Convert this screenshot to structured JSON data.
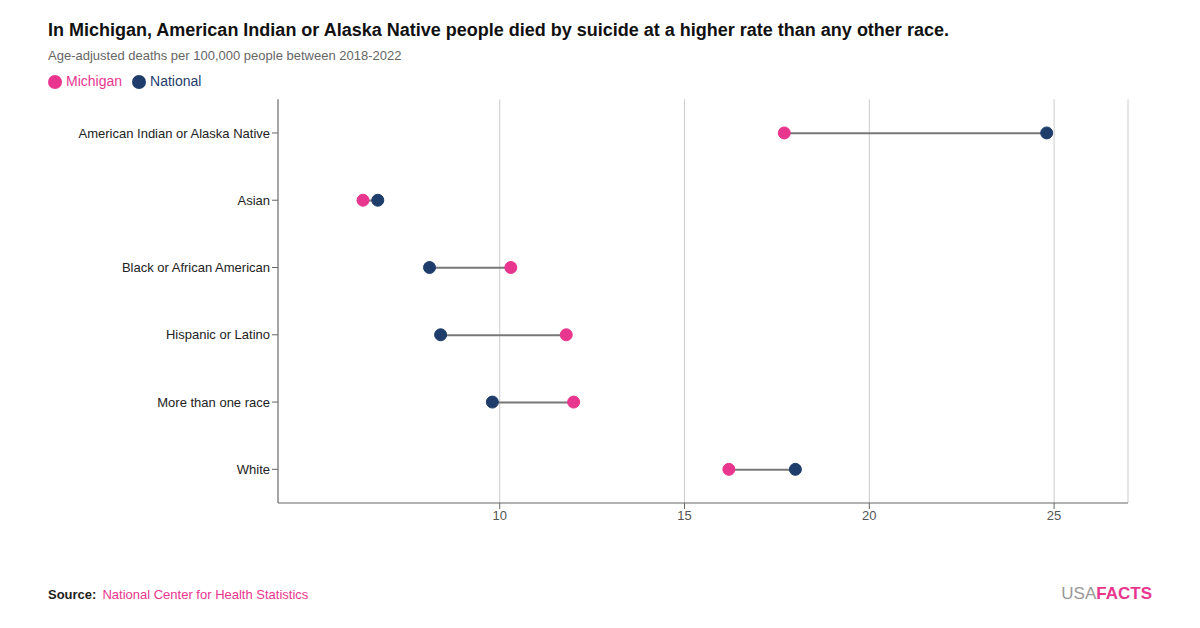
{
  "chart_data": {
    "type": "dumbbell",
    "title": "In Michigan, American Indian or Alaska Native people died by suicide at a higher rate than any other race.",
    "subtitle": "Age-adjusted deaths per 100,000 people between 2018-2022",
    "categories": [
      "American Indian or Alaska Native",
      "Asian",
      "Black or African American",
      "Hispanic or Latino",
      "More than one race",
      "White"
    ],
    "series": [
      {
        "name": "National",
        "color": "#1f3d6b",
        "values": [
          24.8,
          6.7,
          8.1,
          8.4,
          9.8,
          18.0
        ]
      },
      {
        "name": "Michigan",
        "color": "#e8368f",
        "values": [
          17.7,
          6.3,
          10.3,
          11.8,
          12.0,
          16.2
        ]
      }
    ],
    "xlim": [
      4,
      27
    ],
    "xticks": [
      10,
      15,
      20,
      25
    ],
    "grid": true,
    "legend": "upper left",
    "orientation": "horizontal",
    "annotations": [
      {
        "text": "Source:",
        "color": "#222222"
      },
      {
        "text": "National Center for Health Statistics",
        "color": "#e8368f"
      },
      {
        "text": "USA",
        "color": "#999999"
      },
      {
        "text": "FACTS",
        "color": "#e8368f"
      }
    ]
  }
}
